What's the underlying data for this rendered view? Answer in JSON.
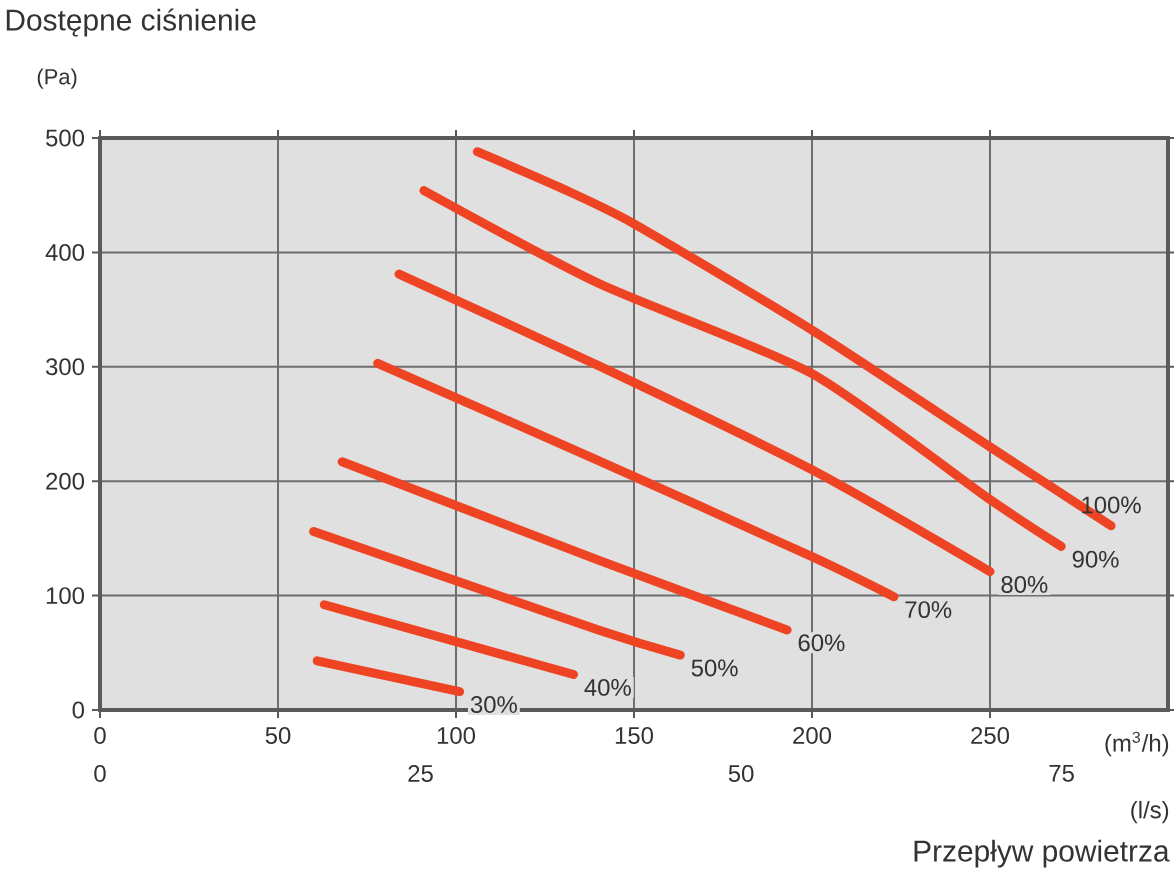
{
  "chart_data": {
    "type": "line",
    "title": "Dostępne ciśnienie",
    "ylabel": "(Pa)",
    "xlabel": "(m$^{3}$/h)",
    "x2label": "(l/s)",
    "annotations": [
      "Przepływ powietrza"
    ],
    "xlim": [
      0,
      300
    ],
    "xticks": [
      0,
      50,
      100,
      150,
      200,
      250
    ],
    "ylim": [
      0,
      500
    ],
    "yticks": [
      0,
      100,
      200,
      300,
      400,
      500
    ],
    "x2lim": [
      0,
      83.3
    ],
    "x2ticks": [
      0,
      25,
      50,
      75
    ],
    "grid": true,
    "series": [
      {
        "name": "30%",
        "color": "#ee4423",
        "x": [
          61,
          101
        ],
        "values": [
          43,
          16
        ]
      },
      {
        "name": "40%",
        "color": "#ee4423",
        "x": [
          63,
          133
        ],
        "values": [
          92,
          31
        ]
      },
      {
        "name": "50%",
        "color": "#ee4423",
        "x": [
          60,
          140,
          163
        ],
        "values": [
          156,
          70,
          48
        ]
      },
      {
        "name": "60%",
        "color": "#ee4423",
        "x": [
          68,
          140,
          193
        ],
        "values": [
          217,
          131,
          70
        ]
      },
      {
        "name": "70%",
        "color": "#ee4423",
        "x": [
          78,
          140,
          200,
          223
        ],
        "values": [
          303,
          218,
          134,
          99
        ]
      },
      {
        "name": "80%",
        "color": "#ee4423",
        "x": [
          84,
          140,
          200,
          250
        ],
        "values": [
          381,
          301,
          210,
          121
        ]
      },
      {
        "name": "90%",
        "color": "#ee4423",
        "x": [
          91,
          140,
          200,
          250,
          270
        ],
        "values": [
          454,
          373,
          294,
          184,
          143
        ]
      },
      {
        "name": "100%",
        "color": "#ee4423",
        "x": [
          106,
          129,
          150,
          200,
          250,
          284
        ],
        "values": [
          488,
          457,
          425,
          332,
          230,
          161
        ]
      }
    ]
  }
}
